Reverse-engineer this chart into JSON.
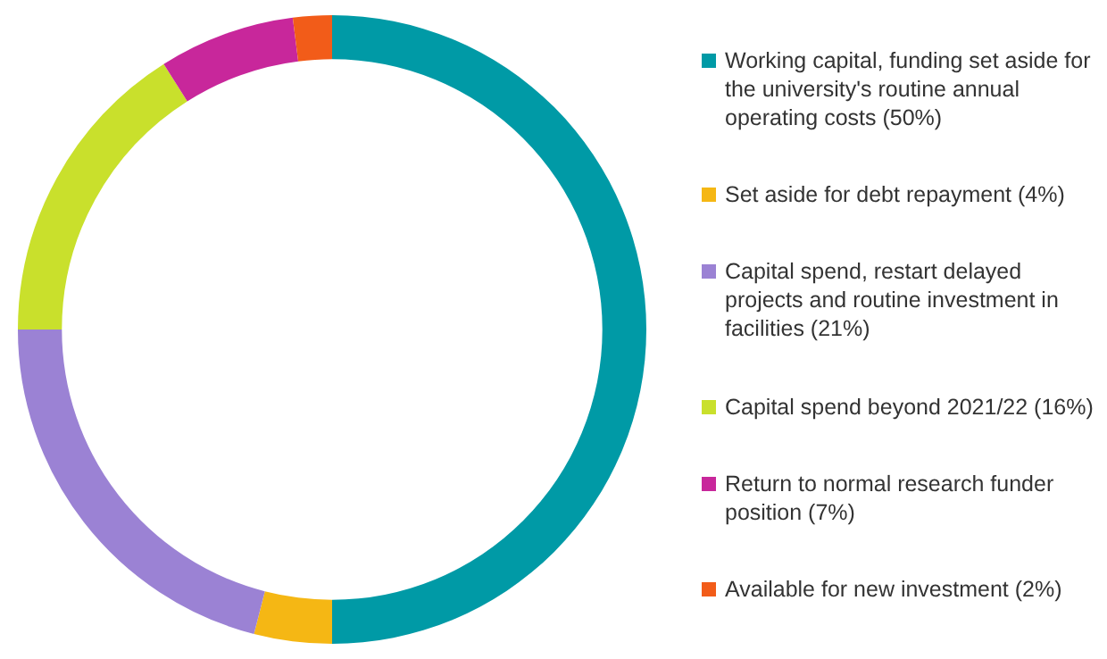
{
  "chart_data": {
    "type": "donut",
    "categories": [
      "Working capital, funding set aside for the university's routine annual operating costs (50%)",
      "Set aside for debt repayment (4%)",
      "Capital spend, restart delayed projects and routine investment in facilities (21%)",
      "Capital spend beyond 2021/22 (16%)",
      "Return to normal research funder position (7%)",
      "Available for new investment (2%)"
    ],
    "values": [
      50,
      4,
      21,
      16,
      7,
      2
    ],
    "colors": [
      "#009aa6",
      "#f5b714",
      "#9b82d4",
      "#c9e02c",
      "#c8279b",
      "#f25c19"
    ],
    "legend": "right"
  }
}
